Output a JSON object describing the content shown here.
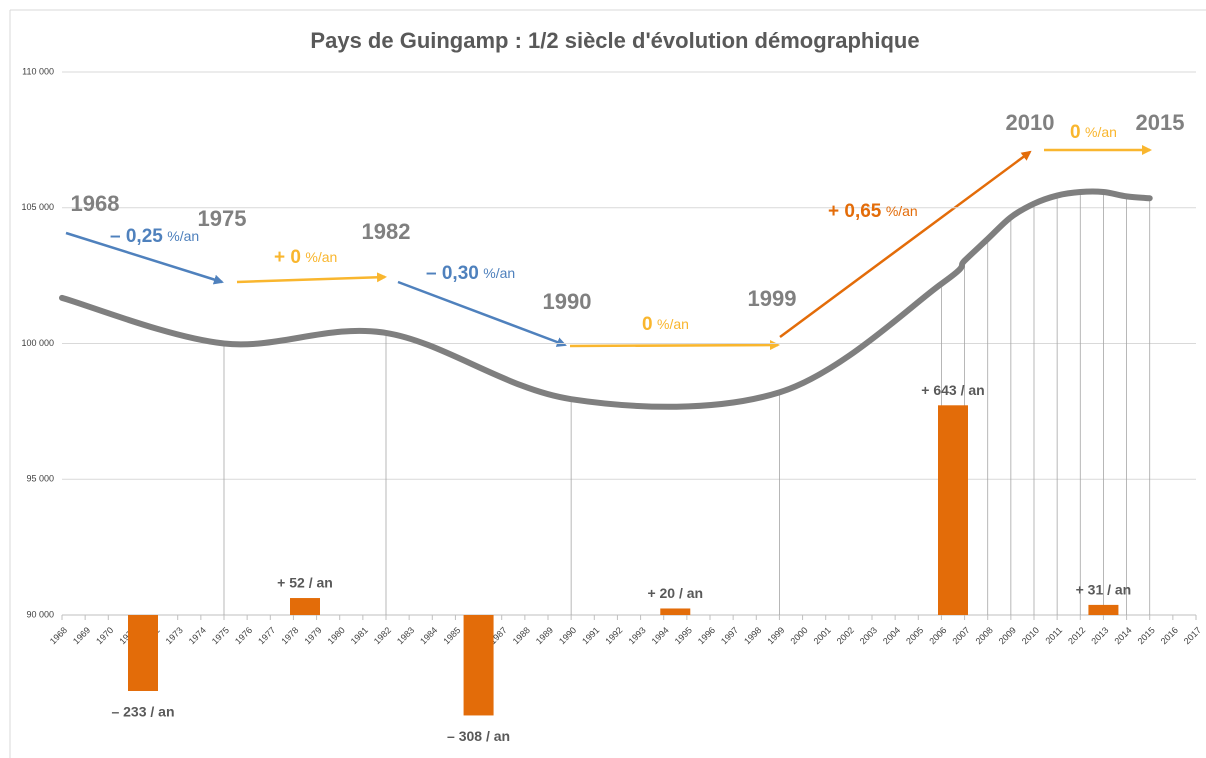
{
  "chart_data": {
    "type": "line",
    "title": "Pays de Guingamp : 1/2 siècle d'évolution démographique",
    "xlim": [
      1968,
      2017
    ],
    "xticks": [
      1968,
      1969,
      1970,
      1971,
      1972,
      1973,
      1974,
      1975,
      1976,
      1977,
      1978,
      1979,
      1980,
      1981,
      1982,
      1983,
      1984,
      1985,
      1986,
      1987,
      1988,
      1989,
      1990,
      1991,
      1992,
      1993,
      1994,
      1995,
      1996,
      1997,
      1998,
      1999,
      2000,
      2001,
      2002,
      2003,
      2004,
      2005,
      2006,
      2007,
      2008,
      2009,
      2010,
      2011,
      2012,
      2013,
      2014,
      2015,
      2016,
      2017
    ],
    "ylim": [
      90000,
      110000
    ],
    "yticks": [
      {
        "value": 90000,
        "label": "90 000"
      },
      {
        "value": 95000,
        "label": "95 000"
      },
      {
        "value": 100000,
        "label": "100 000"
      },
      {
        "value": 105000,
        "label": "105 000"
      },
      {
        "value": 110000,
        "label": "110 000"
      }
    ],
    "y2lim": [
      0,
      1665
    ],
    "grid": true,
    "line": {
      "color": "#7f7f7f",
      "x": [
        1968,
        1975,
        1982,
        1990,
        1999,
        2006,
        2007,
        2008,
        2009,
        2010,
        2011,
        2012,
        2013,
        2014,
        2015
      ],
      "values": [
        101680,
        100000,
        100390,
        97950,
        98200,
        102200,
        103050,
        103850,
        104650,
        105150,
        105450,
        105580,
        105580,
        105420,
        105350
      ]
    },
    "bars": {
      "color": "#e36c09",
      "axis": "y2",
      "x": [
        1971.5,
        1978.5,
        1986,
        1994.5,
        2006.5,
        2013
      ],
      "values": [
        -233,
        52,
        -308,
        20,
        643,
        31
      ],
      "value_labels": [
        "– 233 / an",
        "+ 52 / an",
        "– 308 / an",
        "+ 20 / an",
        "+ 643 / an",
        "+ 31 / an"
      ]
    },
    "period_labels": [
      "1968",
      "1975",
      "1982",
      "1990",
      "1999",
      "2010",
      "2015"
    ],
    "rates": [
      {
        "text": "– 0,25",
        "unit": "%/an",
        "color": "#4f81bd"
      },
      {
        "text": "+ 0",
        "unit": "%/an",
        "color": "#f9b62e"
      },
      {
        "text": "– 0,30",
        "unit": "%/an",
        "color": "#4f81bd"
      },
      {
        "text": "0",
        "unit": "%/an",
        "color": "#f9b62e"
      },
      {
        "text": "+ 0,65",
        "unit": "%/an",
        "color": "#e36c09"
      },
      {
        "text": "0",
        "unit": "%/an",
        "color": "#f9b62e"
      }
    ]
  }
}
